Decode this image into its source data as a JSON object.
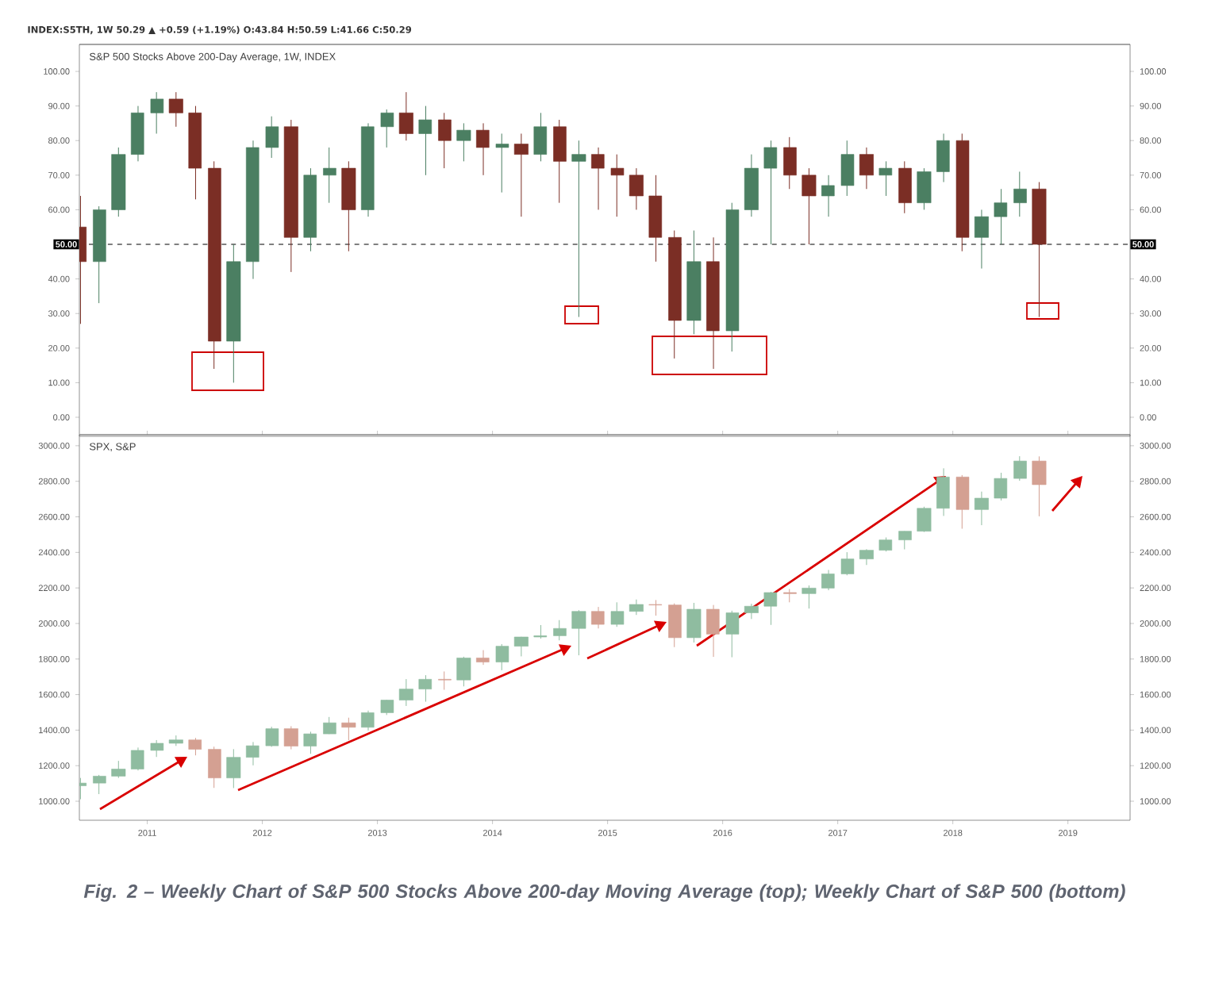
{
  "chart_data": [
    {
      "type": "candlestick",
      "title": "S&P 500 Stocks Above 200-Day Average, 1W, INDEX",
      "subtitle": "INDEX:S5TH, 1W 50.29 ▲ +0.59 (+1.19%) O:43.84 H:50.59 L:41.66 C:50.29",
      "colors": [
        "#7b2e25",
        "#4b7f62",
        "#4b7f62",
        "#4b7f62",
        "#4b7f62",
        "#7b2e25",
        "#7b2e25",
        "#7b2e25",
        "#4b7f62",
        "#4b7f62",
        "#4b7f62",
        "#7b2e25",
        "#4b7f62",
        "#4b7f62",
        "#7b2e25",
        "#4b7f62",
        "#4b7f62",
        "#7b2e25",
        "#4b7f62",
        "#7b2e25",
        "#4b7f62",
        "#7b2e25",
        "#4b7f62",
        "#7b2e25",
        "#4b7f62",
        "#7b2e25",
        "#4b7f62",
        "#7b2e25",
        "#7b2e25",
        "#7b2e25",
        "#7b2e25",
        "#7b2e25",
        "#4b7f62",
        "#7b2e25",
        "#4b7f62",
        "#4b7f62",
        "#4b7f62",
        "#7b2e25",
        "#7b2e25",
        "#4b7f62",
        "#4b7f62",
        "#7b2e25",
        "#4b7f62",
        "#7b2e25",
        "#4b7f62",
        "#4b7f62",
        "#7b2e25",
        "#4b7f62",
        "#4b7f62",
        "#4b7f62",
        "#7b2e25"
      ],
      "x": [
        "2010-06",
        "2010-08",
        "2010-10",
        "2010-12",
        "2011-02",
        "2011-04",
        "2011-06",
        "2011-08",
        "2011-10",
        "2011-12",
        "2012-02",
        "2012-04",
        "2012-06",
        "2012-08",
        "2012-10",
        "2012-12",
        "2013-02",
        "2013-04",
        "2013-06",
        "2013-08",
        "2013-10",
        "2013-12",
        "2014-02",
        "2014-04",
        "2014-06",
        "2014-08",
        "2014-10",
        "2014-12",
        "2015-02",
        "2015-04",
        "2015-06",
        "2015-08",
        "2015-10",
        "2015-12",
        "2016-02",
        "2016-04",
        "2016-06",
        "2016-08",
        "2016-10",
        "2016-12",
        "2017-02",
        "2017-04",
        "2017-06",
        "2017-08",
        "2017-10",
        "2017-12",
        "2018-02",
        "2018-04",
        "2018-06",
        "2018-08",
        "2018-10"
      ],
      "ohlc": [
        [
          55,
          64,
          27,
          45
        ],
        [
          45,
          61,
          33,
          60
        ],
        [
          60,
          78,
          58,
          76
        ],
        [
          76,
          90,
          74,
          88
        ],
        [
          88,
          94,
          82,
          92
        ],
        [
          92,
          94,
          84,
          88
        ],
        [
          88,
          90,
          63,
          72
        ],
        [
          72,
          74,
          14,
          22
        ],
        [
          22,
          50,
          10,
          45
        ],
        [
          45,
          80,
          40,
          78
        ],
        [
          78,
          87,
          75,
          84
        ],
        [
          84,
          86,
          42,
          52
        ],
        [
          52,
          72,
          48,
          70
        ],
        [
          70,
          78,
          62,
          72
        ],
        [
          72,
          74,
          48,
          60
        ],
        [
          60,
          85,
          58,
          84
        ],
        [
          84,
          89,
          78,
          88
        ],
        [
          88,
          94,
          80,
          82
        ],
        [
          82,
          90,
          70,
          86
        ],
        [
          86,
          88,
          72,
          80
        ],
        [
          80,
          85,
          74,
          83
        ],
        [
          83,
          85,
          70,
          78
        ],
        [
          78,
          82,
          65,
          79
        ],
        [
          79,
          82,
          58,
          76
        ],
        [
          76,
          88,
          74,
          84
        ],
        [
          84,
          86,
          62,
          74
        ],
        [
          74,
          80,
          29,
          76
        ],
        [
          76,
          78,
          60,
          72
        ],
        [
          72,
          76,
          58,
          70
        ],
        [
          70,
          72,
          60,
          64
        ],
        [
          64,
          70,
          45,
          52
        ],
        [
          52,
          54,
          17,
          28
        ],
        [
          28,
          54,
          24,
          45
        ],
        [
          45,
          52,
          14,
          25
        ],
        [
          25,
          62,
          19,
          60
        ],
        [
          60,
          76,
          58,
          72
        ],
        [
          72,
          80,
          50,
          78
        ],
        [
          78,
          81,
          66,
          70
        ],
        [
          70,
          72,
          50,
          64
        ],
        [
          64,
          70,
          58,
          67
        ],
        [
          67,
          80,
          64,
          76
        ],
        [
          76,
          78,
          66,
          70
        ],
        [
          70,
          74,
          64,
          72
        ],
        [
          72,
          74,
          59,
          62
        ],
        [
          62,
          72,
          60,
          71
        ],
        [
          71,
          82,
          68,
          80
        ],
        [
          80,
          82,
          48,
          52
        ],
        [
          52,
          60,
          43,
          58
        ],
        [
          58,
          66,
          50,
          62
        ],
        [
          62,
          71,
          58,
          66
        ],
        [
          66,
          68,
          29,
          50
        ]
      ],
      "xlim": [
        "2010-05-30",
        "2019-07-16"
      ],
      "ylim": [
        -5.5,
        107.8
      ],
      "yticks": [
        {
          "value": 0,
          "label": "0.00"
        },
        {
          "value": 10,
          "label": "10.00"
        },
        {
          "value": 20,
          "label": "20.00"
        },
        {
          "value": 30,
          "label": "30.00"
        },
        {
          "value": 40,
          "label": "40.00"
        },
        {
          "value": 60,
          "label": "60.00"
        },
        {
          "value": 70,
          "label": "70.00"
        },
        {
          "value": 80,
          "label": "80.00"
        },
        {
          "value": 90,
          "label": "90.00"
        },
        {
          "value": 100,
          "label": "100.00"
        }
      ],
      "y2lim": [
        -5.5,
        107.8
      ],
      "y2ticks": [
        {
          "value": 0,
          "label": "0.00"
        },
        {
          "value": 10,
          "label": "10.00"
        },
        {
          "value": 20,
          "label": "20.00"
        },
        {
          "value": 30,
          "label": "30.00"
        },
        {
          "value": 40,
          "label": "40.00"
        },
        {
          "value": 60,
          "label": "60.00"
        },
        {
          "value": 70,
          "label": "70.00"
        },
        {
          "value": 80,
          "label": "80.00"
        },
        {
          "value": 90,
          "label": "90.00"
        },
        {
          "value": 100,
          "label": "100.00"
        }
      ],
      "ref_lines": [
        {
          "axis": "y",
          "value": 50,
          "label": "50.00",
          "color": "#000000",
          "line_style": "dashed"
        }
      ],
      "tick_labels": "y"
    },
    {
      "type": "candlestick",
      "title": "SPX, S&P",
      "colors": [
        "#8fbca0",
        "#8fbca0",
        "#8fbca0",
        "#8fbca0",
        "#8fbca0",
        "#8fbca0",
        "#d4a092",
        "#d4a092",
        "#8fbca0",
        "#8fbca0",
        "#8fbca0",
        "#d4a092",
        "#8fbca0",
        "#8fbca0",
        "#d4a092",
        "#8fbca0",
        "#8fbca0",
        "#8fbca0",
        "#8fbca0",
        "#d4a092",
        "#8fbca0",
        "#d4a092",
        "#8fbca0",
        "#8fbca0",
        "#8fbca0",
        "#8fbca0",
        "#8fbca0",
        "#d4a092",
        "#8fbca0",
        "#8fbca0",
        "#d4a092",
        "#d4a092",
        "#8fbca0",
        "#d4a092",
        "#8fbca0",
        "#8fbca0",
        "#8fbca0",
        "#d4a092",
        "#8fbca0",
        "#8fbca0",
        "#8fbca0",
        "#8fbca0",
        "#8fbca0",
        "#8fbca0",
        "#8fbca0",
        "#8fbca0",
        "#d4a092",
        "#8fbca0",
        "#8fbca0",
        "#8fbca0",
        "#d4a092"
      ],
      "x": [
        "2010-06",
        "2010-08",
        "2010-10",
        "2010-12",
        "2011-02",
        "2011-04",
        "2011-06",
        "2011-08",
        "2011-10",
        "2011-12",
        "2012-02",
        "2012-04",
        "2012-06",
        "2012-08",
        "2012-10",
        "2012-12",
        "2013-02",
        "2013-04",
        "2013-06",
        "2013-08",
        "2013-10",
        "2013-12",
        "2014-02",
        "2014-04",
        "2014-06",
        "2014-08",
        "2014-10",
        "2014-12",
        "2015-02",
        "2015-04",
        "2015-06",
        "2015-08",
        "2015-10",
        "2015-12",
        "2016-02",
        "2016-04",
        "2016-06",
        "2016-08",
        "2016-10",
        "2016-12",
        "2017-02",
        "2017-04",
        "2017-06",
        "2017-08",
        "2017-10",
        "2017-12",
        "2018-02",
        "2018-04",
        "2018-06",
        "2018-08",
        "2018-10"
      ],
      "ohlc": [
        [
          1087,
          1131,
          1011,
          1102
        ],
        [
          1102,
          1148,
          1040,
          1141
        ],
        [
          1141,
          1227,
          1131,
          1181
        ],
        [
          1181,
          1302,
          1173,
          1286
        ],
        [
          1286,
          1344,
          1249,
          1326
        ],
        [
          1326,
          1370,
          1311,
          1345
        ],
        [
          1345,
          1356,
          1258,
          1292
        ],
        [
          1292,
          1307,
          1075,
          1131
        ],
        [
          1131,
          1293,
          1074,
          1247
        ],
        [
          1247,
          1333,
          1202,
          1312
        ],
        [
          1312,
          1419,
          1306,
          1408
        ],
        [
          1408,
          1422,
          1292,
          1310
        ],
        [
          1310,
          1391,
          1267,
          1379
        ],
        [
          1379,
          1474,
          1378,
          1441
        ],
        [
          1441,
          1470,
          1343,
          1416
        ],
        [
          1416,
          1510,
          1398,
          1498
        ],
        [
          1498,
          1570,
          1485,
          1569
        ],
        [
          1569,
          1687,
          1536,
          1631
        ],
        [
          1631,
          1709,
          1560,
          1686
        ],
        [
          1686,
          1730,
          1627,
          1682
        ],
        [
          1682,
          1813,
          1646,
          1806
        ],
        [
          1806,
          1850,
          1767,
          1783
        ],
        [
          1783,
          1884,
          1737,
          1872
        ],
        [
          1872,
          1925,
          1815,
          1924
        ],
        [
          1924,
          1991,
          1915,
          1931
        ],
        [
          1931,
          2019,
          1905,
          1972
        ],
        [
          1972,
          2075,
          1821,
          2068
        ],
        [
          2068,
          2093,
          1972,
          1995
        ],
        [
          1995,
          2119,
          1981,
          2068
        ],
        [
          2068,
          2135,
          2048,
          2107
        ],
        [
          2107,
          2132,
          2044,
          2104
        ],
        [
          2104,
          2113,
          1867,
          1920
        ],
        [
          1920,
          2116,
          1893,
          2080
        ],
        [
          2080,
          2104,
          1812,
          1940
        ],
        [
          1940,
          2072,
          1810,
          2060
        ],
        [
          2060,
          2111,
          2025,
          2097
        ],
        [
          2097,
          2178,
          1992,
          2174
        ],
        [
          2174,
          2194,
          2119,
          2168
        ],
        [
          2168,
          2214,
          2084,
          2199
        ],
        [
          2199,
          2301,
          2187,
          2279
        ],
        [
          2279,
          2401,
          2271,
          2363
        ],
        [
          2363,
          2418,
          2329,
          2412
        ],
        [
          2412,
          2484,
          2405,
          2470
        ],
        [
          2470,
          2519,
          2417,
          2519
        ],
        [
          2519,
          2657,
          2515,
          2648
        ],
        [
          2648,
          2873,
          2605,
          2824
        ],
        [
          2824,
          2835,
          2533,
          2641
        ],
        [
          2641,
          2742,
          2553,
          2705
        ],
        [
          2705,
          2848,
          2692,
          2816
        ],
        [
          2816,
          2941,
          2803,
          2914
        ],
        [
          2914,
          2940,
          2603,
          2781
        ]
      ],
      "xlim": [
        "2010-05-30",
        "2019-07-16"
      ],
      "ylim": [
        893,
        3062
      ],
      "xticks": [
        {
          "value": "2011",
          "label": "2011"
        },
        {
          "value": "2012",
          "label": "2012"
        },
        {
          "value": "2013",
          "label": "2013"
        },
        {
          "value": "2014",
          "label": "2014"
        },
        {
          "value": "2015",
          "label": "2015"
        },
        {
          "value": "2016",
          "label": "2016"
        },
        {
          "value": "2017",
          "label": "2017"
        },
        {
          "value": "2018",
          "label": "2018"
        },
        {
          "value": "2019",
          "label": "2019"
        }
      ],
      "yticks": [
        {
          "value": 1000,
          "label": "1000.00"
        },
        {
          "value": 1200,
          "label": "1200.00"
        },
        {
          "value": 1400,
          "label": "1400.00"
        },
        {
          "value": 1600,
          "label": "1600.00"
        },
        {
          "value": 1800,
          "label": "1800.00"
        },
        {
          "value": 2000,
          "label": "2000.00"
        },
        {
          "value": 2200,
          "label": "2200.00"
        },
        {
          "value": 2400,
          "label": "2400.00"
        },
        {
          "value": 2600,
          "label": "2600.00"
        },
        {
          "value": 2800,
          "label": "2800.00"
        },
        {
          "value": 3000,
          "label": "3000.00"
        }
      ],
      "y2lim": [
        893,
        3062
      ],
      "y2ticks": [
        {
          "value": 1000,
          "label": "1000.00"
        },
        {
          "value": 1200,
          "label": "1200.00"
        },
        {
          "value": 1400,
          "label": "1400.00"
        },
        {
          "value": 1600,
          "label": "1600.00"
        },
        {
          "value": 1800,
          "label": "1800.00"
        },
        {
          "value": 2000,
          "label": "2000.00"
        },
        {
          "value": 2200,
          "label": "2200.00"
        },
        {
          "value": 2400,
          "label": "2400.00"
        },
        {
          "value": 2600,
          "label": "2600.00"
        },
        {
          "value": 2800,
          "label": "2800.00"
        },
        {
          "value": 3000,
          "label": "3000.00"
        }
      ],
      "annotations": [
        "Fig. 2 – Weekly Chart of S&P 500 Stocks Above 200-day Moving Average (top); Weekly Chart of S&P 500 (bottom)"
      ]
    }
  ]
}
